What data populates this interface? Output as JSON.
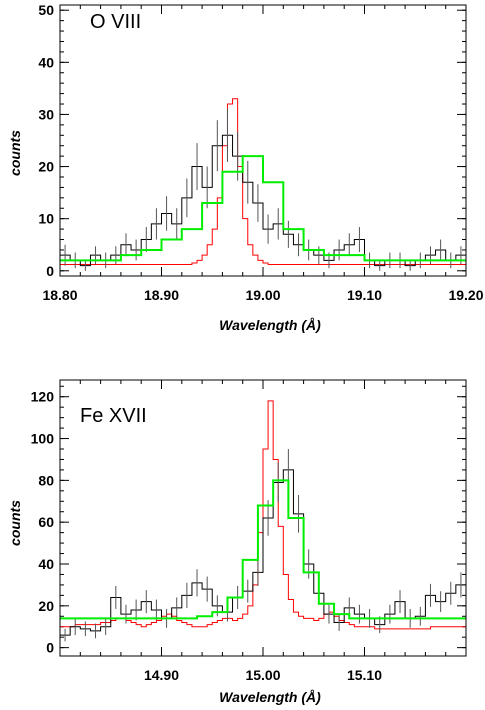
{
  "chart_data": [
    {
      "type": "line",
      "title": "O VIII",
      "xlabel": "Wavelength (Å)",
      "ylabel": "counts",
      "xlim": [
        18.8,
        19.2
      ],
      "ylim": [
        -1,
        51
      ],
      "x_ticks": [
        {
          "value": 18.8,
          "label": "18.80"
        },
        {
          "value": 18.9,
          "label": "18.90"
        },
        {
          "value": 19.0,
          "label": "19.00"
        },
        {
          "value": 19.1,
          "label": "19.10"
        },
        {
          "value": 19.2,
          "label": "19.20"
        }
      ],
      "y_ticks": [
        {
          "value": 0,
          "label": "0"
        },
        {
          "value": 10,
          "label": "10"
        },
        {
          "value": 20,
          "label": "20"
        },
        {
          "value": 30,
          "label": "30"
        },
        {
          "value": 40,
          "label": "40"
        },
        {
          "value": 50,
          "label": "50"
        }
      ],
      "minor_x_step": 0.02,
      "minor_y_step": 2,
      "data": {
        "bin_width": 0.01,
        "x": [
          18.8,
          18.81,
          18.82,
          18.83,
          18.84,
          18.85,
          18.86,
          18.87,
          18.88,
          18.89,
          18.9,
          18.91,
          18.92,
          18.93,
          18.94,
          18.95,
          18.96,
          18.97,
          18.98,
          18.99,
          19.0,
          19.01,
          19.02,
          19.03,
          19.04,
          19.05,
          19.06,
          19.07,
          19.08,
          19.09,
          19.1,
          19.11,
          19.12,
          19.13,
          19.14,
          19.15,
          19.16,
          19.17,
          19.18,
          19.19
        ],
        "y": [
          3,
          2,
          1,
          3,
          2,
          3,
          5,
          4,
          6,
          9,
          11,
          9,
          14,
          20,
          16,
          24,
          26,
          22,
          17,
          13,
          8,
          9,
          7,
          5,
          4,
          3,
          2,
          4,
          5,
          6,
          2,
          1,
          2,
          2,
          1,
          2,
          3,
          4,
          2,
          3
        ],
        "err": [
          2,
          1.5,
          1,
          1.7,
          1.5,
          1.7,
          2.2,
          2,
          2.4,
          3,
          3.3,
          3,
          3.7,
          4.5,
          4,
          4.9,
          5.1,
          4.7,
          4.1,
          3.6,
          2.8,
          3,
          2.6,
          2.2,
          2,
          1.7,
          1.5,
          2,
          2.2,
          2.4,
          1.5,
          1,
          1.5,
          1.5,
          1,
          1.5,
          1.7,
          2,
          1.5,
          1.7
        ]
      },
      "model": {
        "bin_width": 0.02,
        "x": [
          18.8,
          18.82,
          18.84,
          18.86,
          18.88,
          18.9,
          18.92,
          18.94,
          18.96,
          18.98,
          19.0,
          19.02,
          19.04,
          19.06,
          19.08,
          19.1,
          19.12,
          19.14,
          19.16,
          19.18
        ],
        "y": [
          2,
          2,
          2,
          3,
          4,
          6,
          8,
          13,
          19,
          22,
          17,
          8,
          4,
          3,
          3,
          2,
          2,
          2,
          2,
          2
        ]
      },
      "psf": {
        "bin_width": 0.005,
        "x": [
          18.93,
          18.935,
          18.94,
          18.945,
          18.95,
          18.955,
          18.96,
          18.965,
          18.97,
          18.975,
          18.98,
          18.985,
          18.99,
          18.995,
          19.0
        ],
        "y": [
          1.5,
          2,
          3,
          5,
          8,
          14,
          24,
          32,
          33,
          20,
          10,
          5,
          3,
          2,
          1.5
        ],
        "baseline": 1.2
      },
      "colors": {
        "data": "#000000",
        "model": "#00ee00",
        "psf": "#ff0000",
        "axes": "#000000"
      }
    },
    {
      "type": "line",
      "title": "Fe XVII",
      "xlabel": "Wavelength (Å)",
      "ylabel": "counts",
      "xlim": [
        14.8,
        15.2
      ],
      "ylim": [
        -4,
        128
      ],
      "x_ticks": [
        {
          "value": 14.9,
          "label": "14.90"
        },
        {
          "value": 15.0,
          "label": "15.00"
        },
        {
          "value": 15.1,
          "label": "15.10"
        }
      ],
      "y_ticks": [
        {
          "value": 0,
          "label": "0"
        },
        {
          "value": 20,
          "label": "20"
        },
        {
          "value": 40,
          "label": "40"
        },
        {
          "value": 60,
          "label": "60"
        },
        {
          "value": 80,
          "label": "80"
        },
        {
          "value": 100,
          "label": "100"
        },
        {
          "value": 120,
          "label": "120"
        }
      ],
      "minor_x_step": 0.02,
      "minor_y_step": 5,
      "data": {
        "bin_width": 0.01,
        "x": [
          14.8,
          14.81,
          14.82,
          14.83,
          14.84,
          14.85,
          14.86,
          14.87,
          14.88,
          14.89,
          14.9,
          14.91,
          14.92,
          14.93,
          14.94,
          14.95,
          14.96,
          14.97,
          14.98,
          14.99,
          15.0,
          15.01,
          15.02,
          15.03,
          15.04,
          15.05,
          15.06,
          15.07,
          15.08,
          15.09,
          15.1,
          15.11,
          15.12,
          15.13,
          15.14,
          15.15,
          15.16,
          15.17,
          15.18,
          15.19
        ],
        "y": [
          6,
          10,
          9,
          8,
          10,
          24,
          16,
          18,
          22,
          18,
          14,
          19,
          25,
          31,
          28,
          20,
          17,
          24,
          27,
          36,
          62,
          79,
          85,
          64,
          40,
          26,
          16,
          12,
          19,
          16,
          14,
          11,
          16,
          22,
          14,
          15,
          25,
          22,
          26,
          30
        ],
        "err": [
          3,
          4,
          3.5,
          3.5,
          4,
          5.5,
          4.5,
          5,
          5.5,
          5,
          4.5,
          5,
          6,
          6.5,
          6,
          5,
          4.5,
          5.5,
          5.5,
          6.5,
          8.5,
          9.5,
          10,
          9,
          7,
          5.5,
          4.5,
          4,
          5,
          4.5,
          4.5,
          4,
          4.5,
          5.5,
          4.5,
          4.5,
          5.5,
          5,
          5.5,
          6
        ]
      },
      "model": {
        "bin_width": 0.015,
        "x": [
          14.8,
          14.815,
          14.83,
          14.845,
          14.86,
          14.875,
          14.89,
          14.905,
          14.92,
          14.935,
          14.95,
          14.965,
          14.98,
          14.995,
          15.01,
          15.025,
          15.04,
          15.055,
          15.07,
          15.085,
          15.1,
          15.115,
          15.13,
          15.145,
          15.16,
          15.175,
          15.19
        ],
        "y": [
          14,
          14,
          14,
          14,
          14,
          14,
          14,
          14,
          14,
          15,
          17,
          24,
          42,
          68,
          80,
          62,
          36,
          21,
          16,
          14,
          14,
          14,
          14,
          14,
          14,
          14,
          14
        ]
      },
      "psf": {
        "bin_width": 0.005,
        "x": [
          14.8,
          14.805,
          14.81,
          14.815,
          14.82,
          14.825,
          14.83,
          14.835,
          14.84,
          14.845,
          14.85,
          14.855,
          14.86,
          14.865,
          14.87,
          14.875,
          14.88,
          14.885,
          14.89,
          14.895,
          14.9,
          14.905,
          14.91,
          14.915,
          14.92,
          14.925,
          14.93,
          14.935,
          14.94,
          14.945,
          14.95,
          14.955,
          14.96,
          14.965,
          14.97,
          14.975,
          14.98,
          14.985,
          14.99,
          14.995,
          15.0,
          15.005,
          15.01,
          15.015,
          15.02,
          15.025,
          15.03,
          15.035,
          15.04,
          15.045,
          15.05,
          15.055,
          15.06,
          15.065,
          15.07,
          15.075,
          15.08,
          15.085,
          15.09,
          15.095,
          15.1,
          15.105,
          15.11,
          15.115,
          15.12,
          15.125,
          15.13,
          15.135,
          15.14,
          15.145,
          15.15,
          15.155,
          15.16,
          15.165,
          15.17,
          15.175,
          15.18,
          15.185,
          15.19,
          15.195
        ],
        "y": [
          10,
          10,
          10,
          11,
          11,
          11,
          11,
          11,
          12,
          12,
          13,
          14,
          14,
          13,
          12,
          11,
          10,
          11,
          12,
          13,
          15,
          16,
          15,
          13,
          12,
          11,
          10,
          10,
          10,
          11,
          12,
          13,
          14,
          14,
          13,
          14,
          16,
          20,
          30,
          55,
          95,
          118,
          90,
          58,
          35,
          23,
          17,
          15,
          14,
          14,
          13,
          14,
          16,
          17,
          15,
          13,
          12,
          11,
          10,
          10,
          10,
          10,
          9,
          9,
          9,
          9,
          9,
          9,
          9,
          9,
          9,
          9,
          9,
          10,
          10,
          10,
          10,
          10,
          10,
          10
        ],
        "baseline": 9
      },
      "colors": {
        "data": "#000000",
        "model": "#00ee00",
        "psf": "#ff0000",
        "axes": "#000000"
      }
    }
  ]
}
